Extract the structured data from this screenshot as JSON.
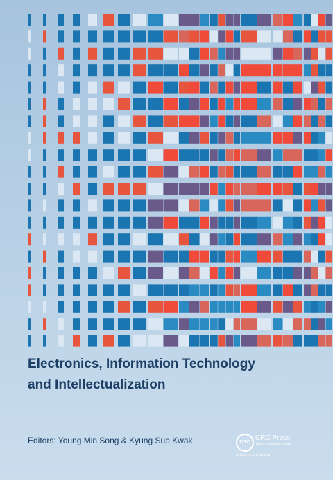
{
  "cover": {
    "title_lines": [
      "Electronics, Information Technology",
      "and Intellectualization"
    ],
    "editors": "Editors: Young Min Song & Kyung Sup Kwak",
    "publisher": {
      "logo": "CRC",
      "name": "CRC Press",
      "group": "Taylor & Francis Group",
      "imprint": "A BALKEMA BOOK"
    }
  }
}
